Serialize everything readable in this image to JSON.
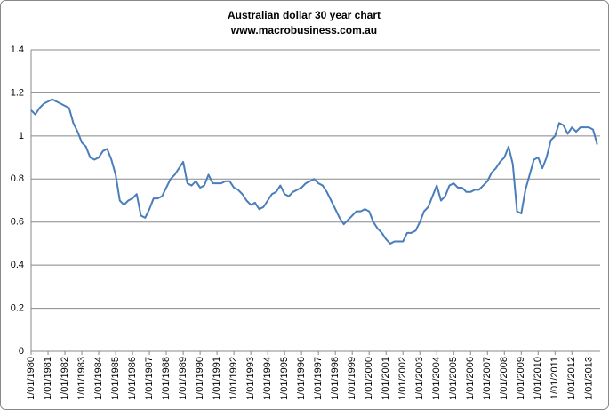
{
  "chart_data": {
    "type": "line",
    "title": "Australian dollar 30 year chart",
    "subtitle": "www.macrobusiness.com.au",
    "color": "#4a7ebb",
    "grid": true,
    "xlim": [
      "1980-01-01",
      "2013-09-01"
    ],
    "ylim": [
      0,
      1.4
    ],
    "yticks": [
      0,
      0.2,
      0.4,
      0.6,
      0.8,
      1,
      1.2,
      1.4
    ],
    "xticks": [
      {
        "value": "1980-01-01",
        "label": "1/01/1980"
      },
      {
        "value": "1981-01-01",
        "label": "1/01/1981"
      },
      {
        "value": "1982-01-01",
        "label": "1/01/1982"
      },
      {
        "value": "1983-01-01",
        "label": "1/01/1983"
      },
      {
        "value": "1984-01-01",
        "label": "1/01/1984"
      },
      {
        "value": "1985-01-01",
        "label": "1/01/1985"
      },
      {
        "value": "1986-01-01",
        "label": "1/01/1986"
      },
      {
        "value": "1987-01-01",
        "label": "1/01/1987"
      },
      {
        "value": "1988-01-01",
        "label": "1/01/1988"
      },
      {
        "value": "1989-01-01",
        "label": "1/01/1989"
      },
      {
        "value": "1990-01-01",
        "label": "1/01/1990"
      },
      {
        "value": "1991-01-01",
        "label": "1/01/1991"
      },
      {
        "value": "1992-01-01",
        "label": "1/01/1992"
      },
      {
        "value": "1993-01-01",
        "label": "1/01/1993"
      },
      {
        "value": "1994-01-01",
        "label": "1/01/1994"
      },
      {
        "value": "1995-01-01",
        "label": "1/01/1995"
      },
      {
        "value": "1996-01-01",
        "label": "1/01/1996"
      },
      {
        "value": "1997-01-01",
        "label": "1/01/1997"
      },
      {
        "value": "1998-01-01",
        "label": "1/01/1998"
      },
      {
        "value": "1999-01-01",
        "label": "1/01/1999"
      },
      {
        "value": "2000-01-01",
        "label": "1/01/2000"
      },
      {
        "value": "2001-01-01",
        "label": "1/01/2001"
      },
      {
        "value": "2002-01-01",
        "label": "1/01/2002"
      },
      {
        "value": "2003-01-01",
        "label": "1/01/2003"
      },
      {
        "value": "2004-01-01",
        "label": "1/01/2004"
      },
      {
        "value": "2005-01-01",
        "label": "1/01/2005"
      },
      {
        "value": "2006-01-01",
        "label": "1/01/2006"
      },
      {
        "value": "2007-01-01",
        "label": "1/01/2007"
      },
      {
        "value": "2008-01-01",
        "label": "1/01/2008"
      },
      {
        "value": "2009-01-01",
        "label": "1/01/2009"
      },
      {
        "value": "2010-01-01",
        "label": "1/01/2010"
      },
      {
        "value": "2011-01-01",
        "label": "1/01/2011"
      },
      {
        "value": "2012-01-01",
        "label": "1/01/2012"
      },
      {
        "value": "2013-01-01",
        "label": "1/01/2013"
      }
    ],
    "x": [
      "1980-01-01",
      "1980-04-01",
      "1980-07-01",
      "1980-10-01",
      "1981-01-01",
      "1981-04-01",
      "1981-07-01",
      "1981-10-01",
      "1982-01-01",
      "1982-04-01",
      "1982-07-01",
      "1982-10-01",
      "1983-01-01",
      "1983-04-01",
      "1983-07-01",
      "1983-10-01",
      "1984-01-01",
      "1984-04-01",
      "1984-07-01",
      "1984-10-01",
      "1985-01-01",
      "1985-04-01",
      "1985-07-01",
      "1985-10-01",
      "1986-01-01",
      "1986-04-01",
      "1986-07-01",
      "1986-10-01",
      "1987-01-01",
      "1987-04-01",
      "1987-07-01",
      "1987-10-01",
      "1988-01-01",
      "1988-04-01",
      "1988-07-01",
      "1988-10-01",
      "1989-01-01",
      "1989-04-01",
      "1989-07-01",
      "1989-10-01",
      "1990-01-01",
      "1990-04-01",
      "1990-07-01",
      "1990-10-01",
      "1991-01-01",
      "1991-04-01",
      "1991-07-01",
      "1991-10-01",
      "1992-01-01",
      "1992-04-01",
      "1992-07-01",
      "1992-10-01",
      "1993-01-01",
      "1993-04-01",
      "1993-07-01",
      "1993-10-01",
      "1994-01-01",
      "1994-04-01",
      "1994-07-01",
      "1994-10-01",
      "1995-01-01",
      "1995-04-01",
      "1995-07-01",
      "1995-10-01",
      "1996-01-01",
      "1996-04-01",
      "1996-07-01",
      "1996-10-01",
      "1997-01-01",
      "1997-04-01",
      "1997-07-01",
      "1997-10-01",
      "1998-01-01",
      "1998-04-01",
      "1998-07-01",
      "1998-10-01",
      "1999-01-01",
      "1999-04-01",
      "1999-07-01",
      "1999-10-01",
      "2000-01-01",
      "2000-04-01",
      "2000-07-01",
      "2000-10-01",
      "2001-01-01",
      "2001-04-01",
      "2001-07-01",
      "2001-10-01",
      "2002-01-01",
      "2002-04-01",
      "2002-07-01",
      "2002-10-01",
      "2003-01-01",
      "2003-04-01",
      "2003-07-01",
      "2003-10-01",
      "2004-01-01",
      "2004-04-01",
      "2004-07-01",
      "2004-10-01",
      "2005-01-01",
      "2005-04-01",
      "2005-07-01",
      "2005-10-01",
      "2006-01-01",
      "2006-04-01",
      "2006-07-01",
      "2006-10-01",
      "2007-01-01",
      "2007-04-01",
      "2007-07-01",
      "2007-10-01",
      "2008-01-01",
      "2008-04-01",
      "2008-07-01",
      "2008-10-01",
      "2009-01-01",
      "2009-04-01",
      "2009-07-01",
      "2009-10-01",
      "2010-01-01",
      "2010-04-01",
      "2010-07-01",
      "2010-10-01",
      "2011-01-01",
      "2011-04-01",
      "2011-07-01",
      "2011-10-01",
      "2012-01-01",
      "2012-04-01",
      "2012-07-01",
      "2012-10-01",
      "2013-01-01",
      "2013-04-01",
      "2013-07-01"
    ],
    "values": [
      1.12,
      1.1,
      1.13,
      1.15,
      1.16,
      1.17,
      1.16,
      1.15,
      1.14,
      1.13,
      1.06,
      1.02,
      0.97,
      0.95,
      0.9,
      0.89,
      0.9,
      0.93,
      0.94,
      0.89,
      0.82,
      0.7,
      0.68,
      0.7,
      0.71,
      0.73,
      0.63,
      0.62,
      0.66,
      0.71,
      0.71,
      0.72,
      0.76,
      0.8,
      0.82,
      0.85,
      0.88,
      0.78,
      0.77,
      0.79,
      0.76,
      0.77,
      0.82,
      0.78,
      0.78,
      0.78,
      0.79,
      0.79,
      0.76,
      0.75,
      0.73,
      0.7,
      0.68,
      0.69,
      0.66,
      0.67,
      0.7,
      0.73,
      0.74,
      0.77,
      0.73,
      0.72,
      0.74,
      0.75,
      0.76,
      0.78,
      0.79,
      0.8,
      0.78,
      0.77,
      0.74,
      0.7,
      0.66,
      0.62,
      0.59,
      0.61,
      0.63,
      0.65,
      0.65,
      0.66,
      0.65,
      0.6,
      0.57,
      0.55,
      0.52,
      0.5,
      0.51,
      0.51,
      0.51,
      0.55,
      0.55,
      0.56,
      0.6,
      0.65,
      0.67,
      0.72,
      0.77,
      0.7,
      0.72,
      0.77,
      0.78,
      0.76,
      0.76,
      0.74,
      0.74,
      0.75,
      0.75,
      0.77,
      0.79,
      0.83,
      0.85,
      0.88,
      0.9,
      0.95,
      0.87,
      0.65,
      0.64,
      0.75,
      0.82,
      0.89,
      0.9,
      0.85,
      0.9,
      0.98,
      1.0,
      1.06,
      1.05,
      1.01,
      1.04,
      1.02,
      1.04,
      1.04,
      1.04,
      1.03,
      0.96
    ]
  }
}
